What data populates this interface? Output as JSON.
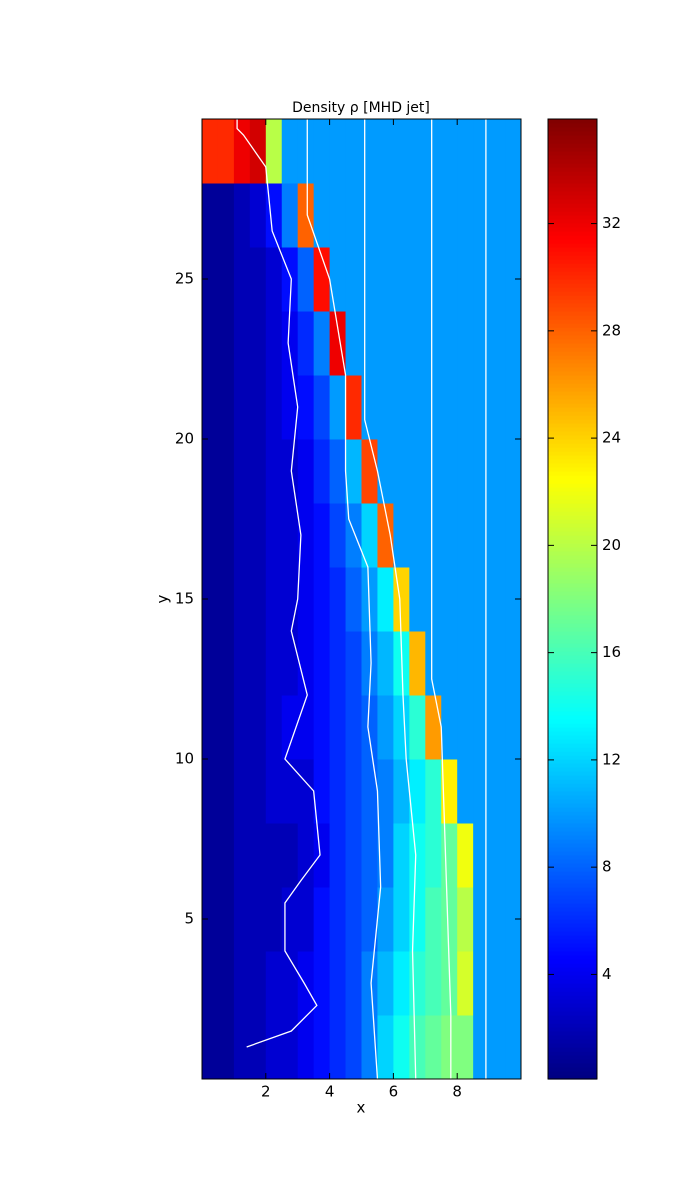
{
  "chart_data": {
    "type": "heatmap",
    "title": "Density ρ [MHD jet]",
    "x_label": "x",
    "y_label": "y",
    "xlim": [
      0,
      10
    ],
    "ylim": [
      0,
      30
    ],
    "xticks": [
      2,
      4,
      6,
      8
    ],
    "yticks": [
      5,
      10,
      15,
      20,
      25
    ],
    "colormap": "jet",
    "clim": [
      0.1,
      35.9
    ],
    "colorbar_ticks": [
      4,
      8,
      12,
      16,
      20,
      24,
      28,
      32
    ],
    "xbins": [
      0,
      0.5,
      1,
      1.5,
      2,
      2.5,
      3,
      3.5,
      4,
      4.5,
      5,
      5.5,
      6,
      6.5,
      7,
      7.5,
      8,
      8.5,
      9,
      9.5,
      10
    ],
    "ybins": [
      0,
      2,
      4,
      6,
      8,
      10,
      12,
      14,
      16,
      18,
      20,
      22,
      24,
      26,
      28,
      30
    ],
    "z": [
      [
        1,
        1,
        2,
        2,
        3,
        3,
        4,
        5,
        6,
        7,
        9,
        12,
        14,
        16,
        17,
        18,
        18,
        10,
        10,
        10
      ],
      [
        1,
        1,
        2,
        2,
        3,
        3,
        4,
        5,
        6,
        7,
        9,
        11,
        13,
        15,
        16,
        17,
        21,
        10,
        10,
        10
      ],
      [
        1,
        1,
        2,
        2,
        2,
        3,
        3,
        5,
        6,
        7,
        8,
        10,
        12,
        14,
        16,
        17,
        20,
        10,
        10,
        10
      ],
      [
        1,
        1,
        2,
        2,
        2,
        2,
        3,
        4,
        6,
        7,
        8,
        9,
        12,
        14,
        15,
        17,
        22,
        10,
        10,
        10
      ],
      [
        1,
        1,
        2,
        2,
        3,
        3,
        3,
        5,
        6,
        7,
        8,
        9,
        11,
        13,
        15,
        23,
        10,
        10,
        10,
        10
      ],
      [
        1,
        1,
        2,
        2,
        3,
        4,
        4,
        5,
        6,
        7,
        8,
        10,
        12,
        15,
        26,
        10,
        10,
        10,
        10,
        10
      ],
      [
        1,
        1,
        2,
        2,
        3,
        3,
        4,
        5,
        6,
        7,
        9,
        11,
        14,
        25,
        10,
        10,
        10,
        10,
        10,
        10
      ],
      [
        1,
        1,
        2,
        2,
        3,
        3,
        4,
        5,
        6,
        8,
        10,
        13,
        24,
        10,
        10,
        10,
        10,
        10,
        10,
        10
      ],
      [
        1,
        1,
        2,
        2,
        3,
        3,
        4,
        5,
        7,
        9,
        12,
        28,
        10,
        10,
        10,
        10,
        10,
        10,
        10,
        10
      ],
      [
        1,
        1,
        2,
        2,
        3,
        3,
        4,
        6,
        8,
        11,
        29,
        10,
        10,
        10,
        10,
        10,
        10,
        10,
        10,
        10
      ],
      [
        1,
        1,
        2,
        2,
        3,
        4,
        5,
        7,
        10,
        30,
        10,
        10,
        10,
        10,
        10,
        10,
        10,
        10,
        10,
        10
      ],
      [
        1,
        1,
        2,
        2,
        3,
        4,
        6,
        9,
        32,
        10,
        10,
        10,
        10,
        10,
        10,
        10,
        10,
        10,
        10,
        10
      ],
      [
        1,
        1,
        2,
        2,
        3,
        5,
        8,
        31,
        10,
        10,
        10,
        10,
        10,
        10,
        10,
        10,
        10,
        10,
        10,
        10
      ],
      [
        1,
        1,
        2,
        3,
        5,
        9,
        28,
        10,
        10,
        10,
        10,
        10,
        10,
        10,
        10,
        10,
        10,
        10,
        10,
        10
      ],
      [
        30,
        30,
        32,
        33,
        20,
        10,
        10,
        10,
        10,
        10,
        10,
        10,
        10,
        10,
        10,
        10,
        10,
        10,
        10,
        10
      ]
    ],
    "contour_color": "#ffffff",
    "contours": [
      {
        "x": [
          1.1,
          1.1,
          1.3,
          2.0,
          2.2,
          2.8,
          2.7,
          3.0,
          2.8,
          3.1,
          3.0,
          2.8,
          3.3,
          2.6,
          3.5,
          3.7,
          3.1,
          2.6,
          2.6,
          3.2,
          3.6,
          2.8,
          1.4
        ],
        "y": [
          30,
          29.7,
          29.5,
          28.5,
          26.5,
          25,
          23,
          21,
          19,
          17,
          15,
          14,
          12,
          10,
          9,
          7,
          6.2,
          5.5,
          4,
          3,
          2.3,
          1.5,
          1.0
        ]
      },
      {
        "x": [
          3.3,
          3.3,
          4.0,
          4.5,
          4.5,
          4.6,
          5.2,
          5.3,
          5.2,
          5.5,
          5.6,
          5.3,
          5.5
        ],
        "y": [
          30,
          27,
          25,
          22,
          19,
          17.5,
          16,
          13,
          11,
          9,
          6,
          3,
          0
        ]
      },
      {
        "x": [
          5.1,
          5.1,
          5.5,
          5.9,
          6.2,
          6.3,
          6.4,
          6.7,
          6.6,
          6.7
        ],
        "y": [
          30,
          20.6,
          19,
          17,
          15,
          12,
          10,
          7,
          4,
          0
        ]
      },
      {
        "x": [
          7.2,
          7.2,
          7.5,
          7.6,
          7.7,
          7.8,
          7.8
        ],
        "y": [
          30,
          12.5,
          11,
          8,
          5,
          2,
          0
        ]
      },
      {
        "x": [
          8.9,
          8.9
        ],
        "y": [
          30,
          0
        ]
      }
    ]
  }
}
